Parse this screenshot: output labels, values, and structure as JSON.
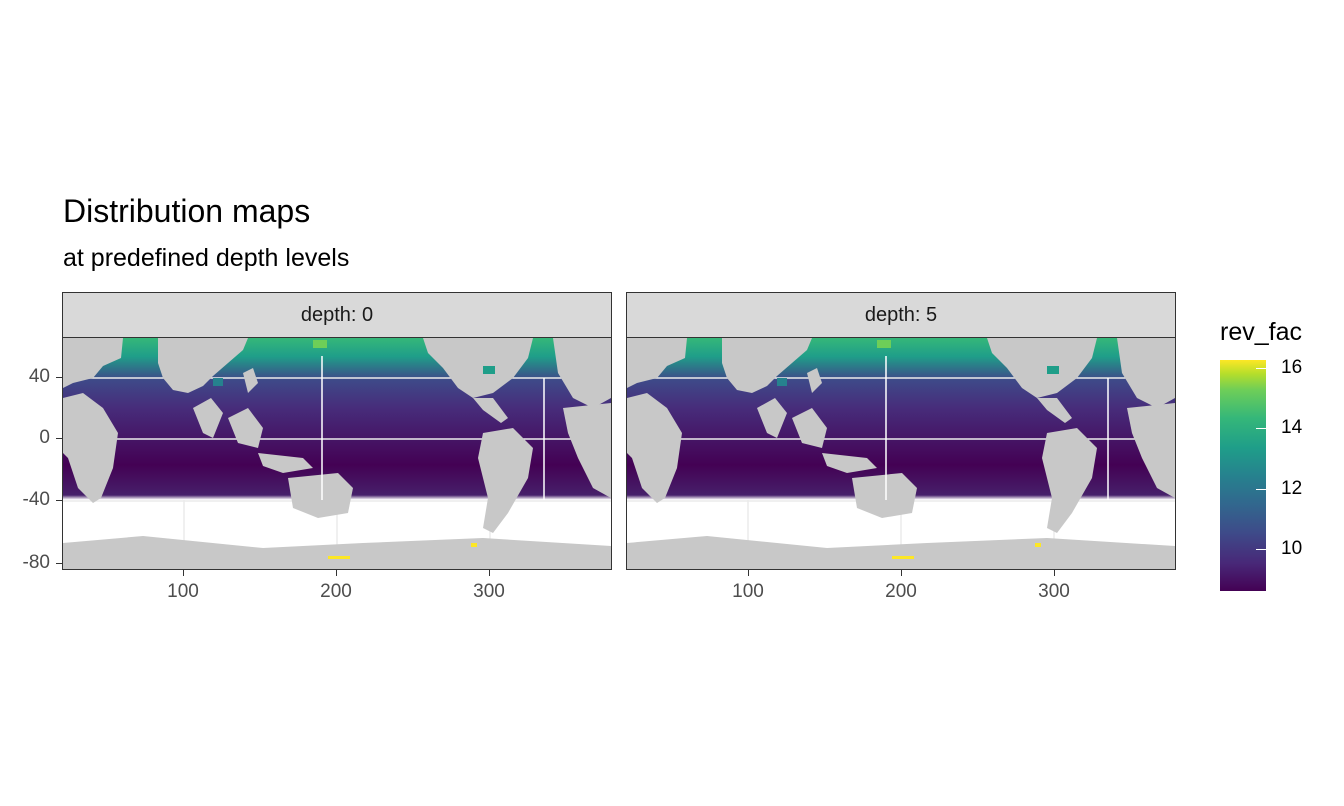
{
  "title": "Distribution maps",
  "subtitle": "at predefined depth levels",
  "legend": {
    "title": "rev_fac",
    "labels": [
      "16",
      "14",
      "12",
      "10"
    ],
    "colors": [
      "#440154",
      "#3e4a89",
      "#26828e",
      "#35b779",
      "#b5de2b",
      "#fde725"
    ]
  },
  "map_data": {
    "panels": [
      {
        "strip": "depth: 0"
      },
      {
        "strip": "depth: 5"
      }
    ],
    "x_ticks": [
      "100",
      "200",
      "300"
    ],
    "y_ticks": [
      "40",
      "0",
      "-40",
      "-80"
    ],
    "colors": {
      "land": "#c8c8c8",
      "panel_background": "#ffffff",
      "grid": "#ebebeb"
    }
  }
}
